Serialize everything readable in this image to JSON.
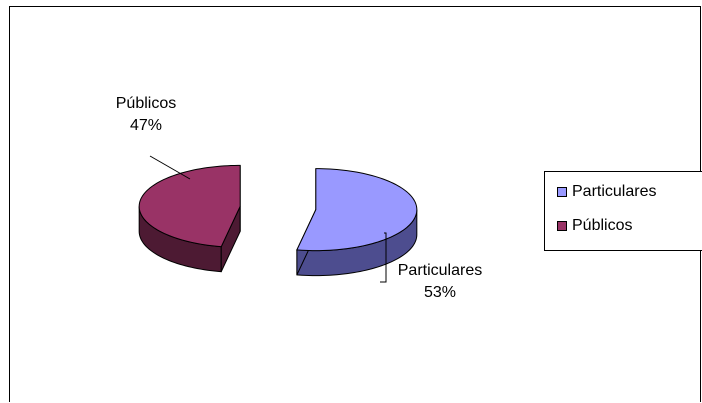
{
  "chart_data": {
    "type": "pie",
    "categories": [
      "Particulares",
      "Públicos"
    ],
    "values": [
      53,
      47
    ],
    "unit": "%",
    "data_labels": [
      {
        "name": "Particulares",
        "value": "53%"
      },
      {
        "name": "Públicos",
        "value": "47%"
      }
    ],
    "legend": {
      "placement": "right",
      "entries": [
        "Particulares",
        "Públicos"
      ]
    },
    "colors": {
      "Particulares": "#9999ff",
      "Particulares_side": "#4d4d8f",
      "Públicos": "#993366",
      "Públicos_side": "#4d1a33"
    },
    "style": "3d-exploded-pie"
  }
}
